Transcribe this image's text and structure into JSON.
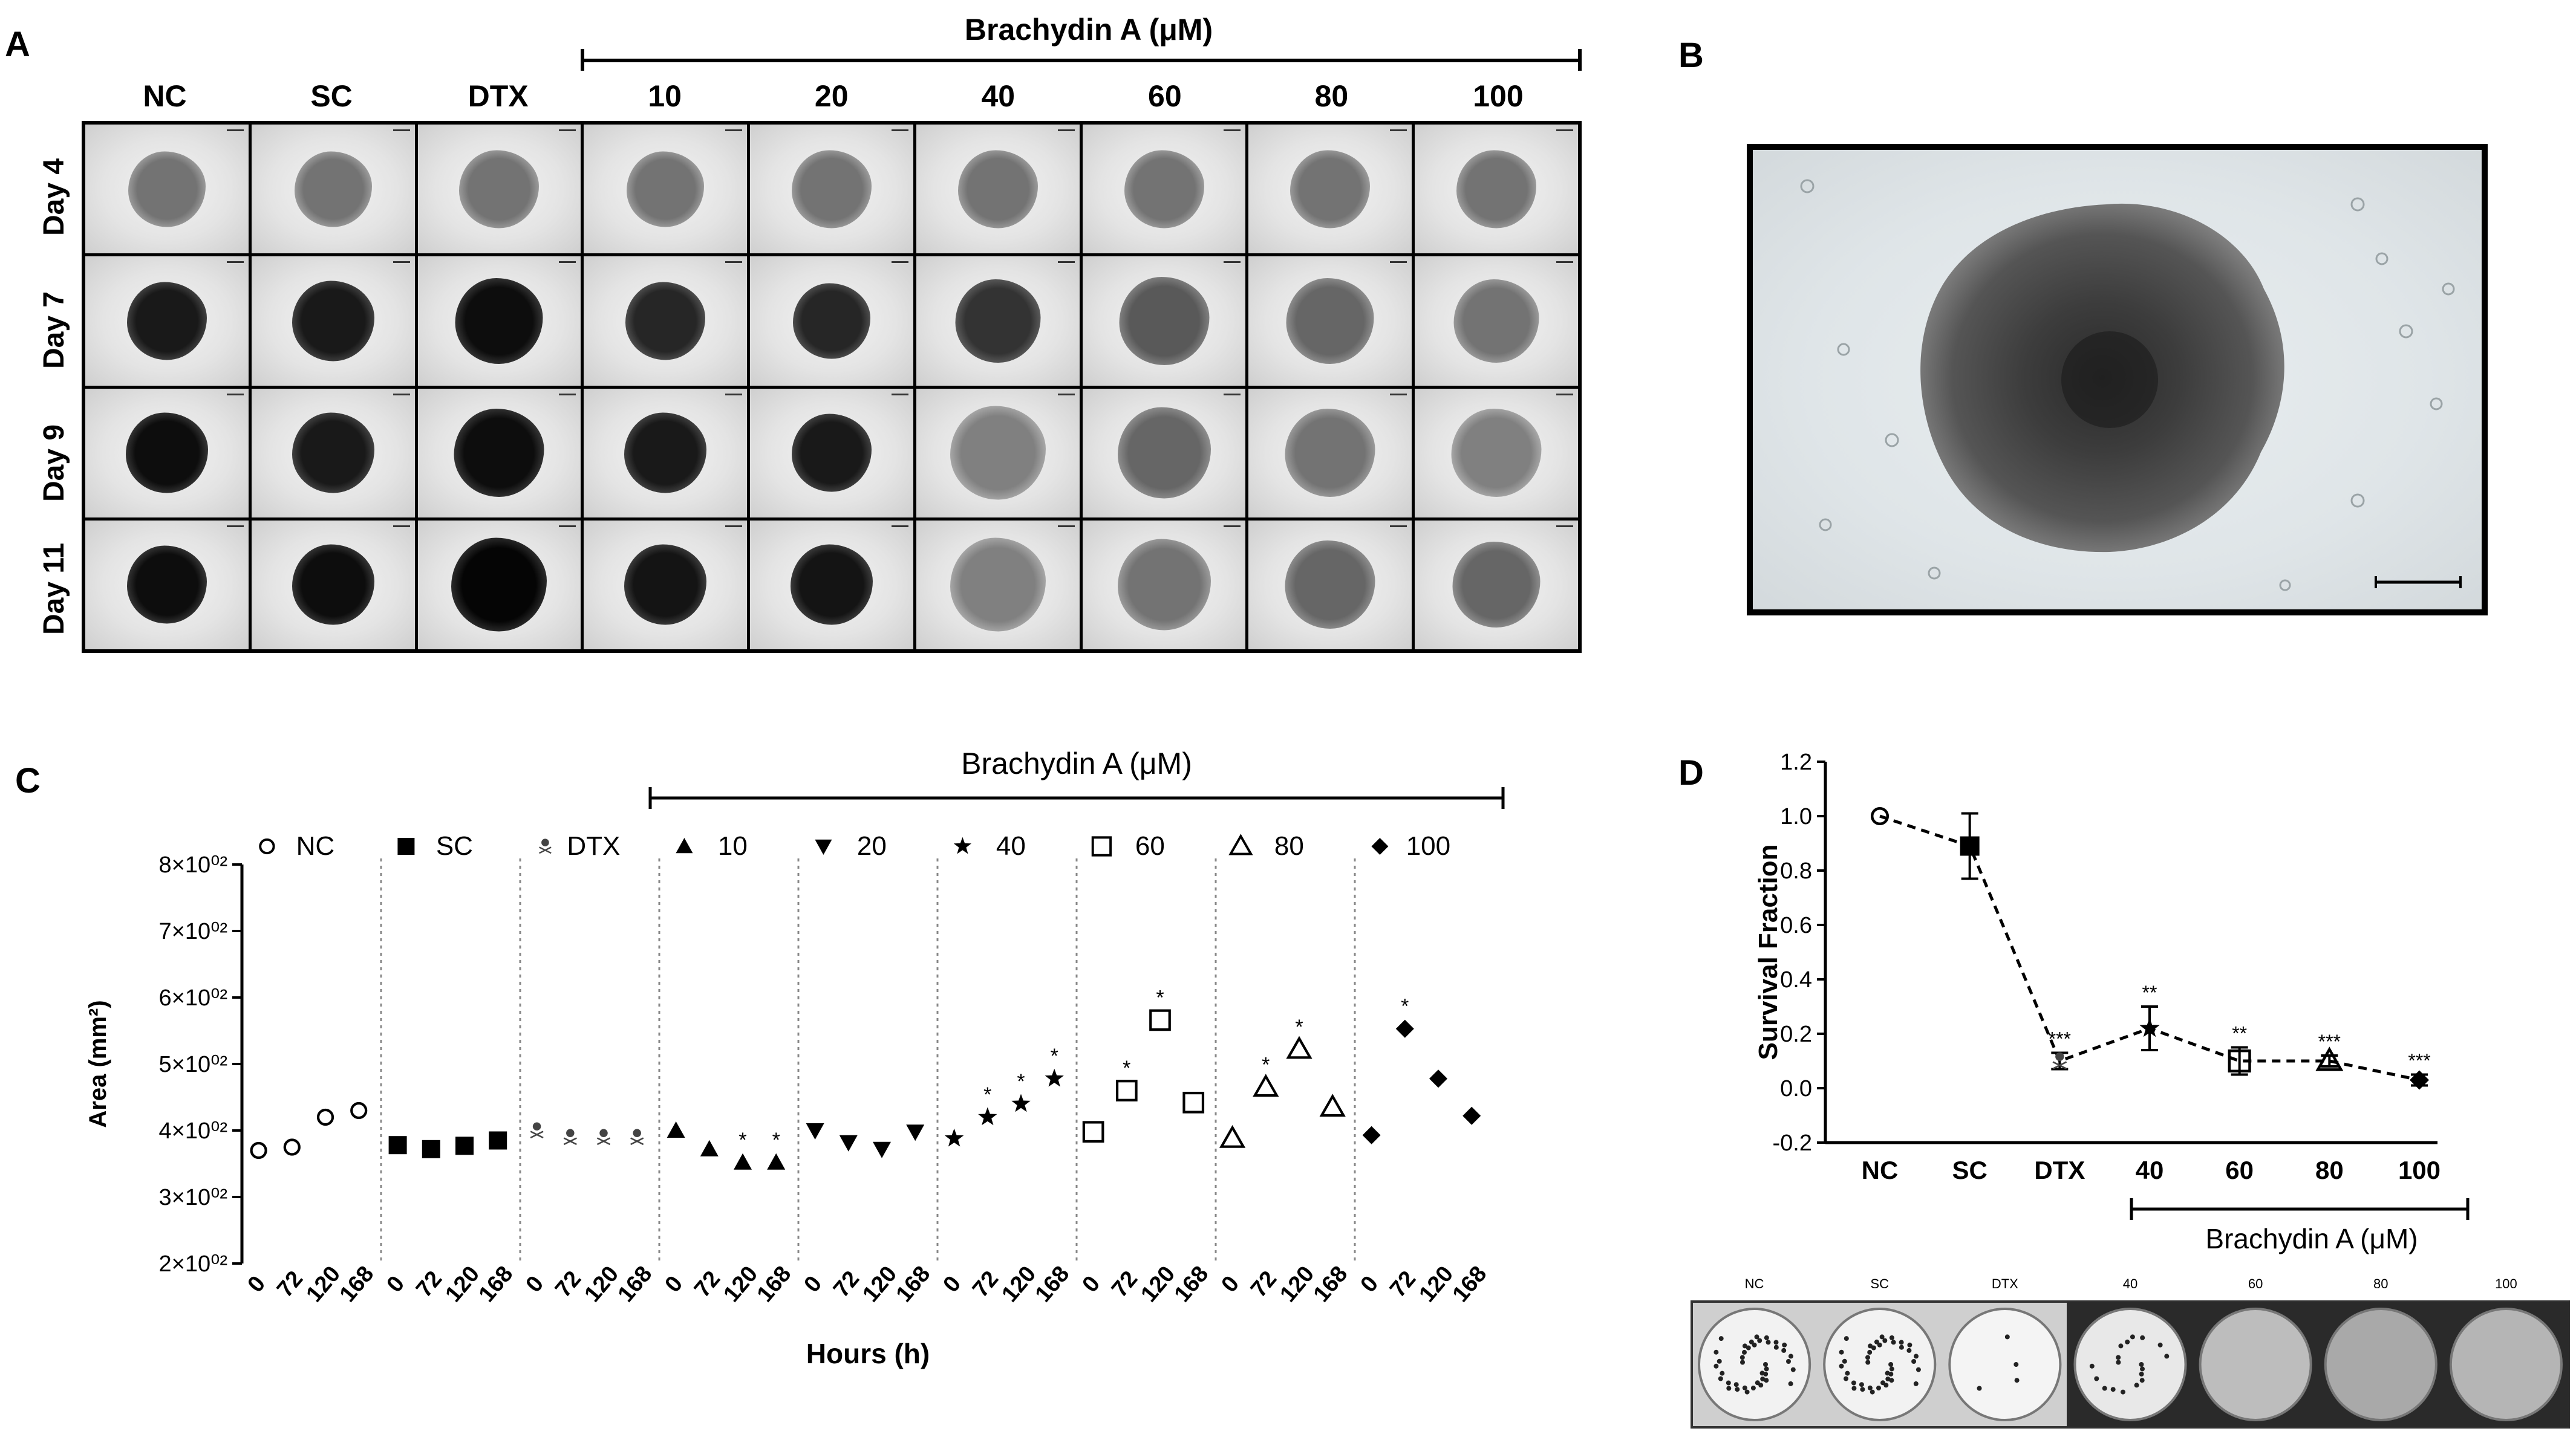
{
  "panels": {
    "a_label": "A",
    "b_label": "B",
    "c_label": "C",
    "d_label": "D"
  },
  "panel_a": {
    "treatment_title": "Brachydin A (μM)",
    "columns": [
      "NC",
      "SC",
      "DTX",
      "10",
      "20",
      "40",
      "60",
      "80",
      "100"
    ],
    "rows": [
      "Day 4",
      "Day 7",
      "Day 9",
      "Day 11"
    ]
  },
  "chart_data": [
    {
      "type": "scatter",
      "panel": "C",
      "xlabel": "Hours (h)",
      "ylabel": "Area (mm²)",
      "treatment_title": "Brachydin A (μM)",
      "y_tick_labels": [
        "2×10⁰²",
        "3×10⁰²",
        "4×10⁰²",
        "5×10⁰²",
        "6×10⁰²",
        "7×10⁰²",
        "8×10⁰²"
      ],
      "ylim": [
        200,
        800
      ],
      "x_tick_labels": [
        "0",
        "72",
        "120",
        "168"
      ],
      "legend_placement": "top",
      "groups": [
        {
          "name": "NC",
          "marker": "circle-open",
          "values": [
            370,
            375,
            420,
            430
          ],
          "stars": [
            "",
            "",
            "",
            ""
          ]
        },
        {
          "name": "SC",
          "marker": "square-filled",
          "values": [
            378,
            372,
            377,
            385
          ],
          "stars": [
            "",
            "",
            "",
            ""
          ]
        },
        {
          "name": "DTX",
          "marker": "skull",
          "values": [
            400,
            390,
            390,
            390
          ],
          "stars": [
            "",
            "",
            "",
            ""
          ]
        },
        {
          "name": "10",
          "marker": "triangle-up",
          "values": [
            400,
            372,
            352,
            352
          ],
          "stars": [
            "",
            "",
            "*",
            "*"
          ]
        },
        {
          "name": "20",
          "marker": "triangle-down",
          "values": [
            400,
            382,
            372,
            398
          ],
          "stars": [
            "",
            "",
            "",
            ""
          ]
        },
        {
          "name": "40",
          "marker": "star",
          "values": [
            388,
            420,
            440,
            478
          ],
          "stars": [
            "",
            "*",
            "*",
            "*"
          ]
        },
        {
          "name": "60",
          "marker": "square-open",
          "values": [
            398,
            460,
            566,
            442
          ],
          "stars": [
            "",
            "*",
            "*",
            ""
          ]
        },
        {
          "name": "80",
          "marker": "triangle-open",
          "values": [
            388,
            465,
            522,
            435
          ],
          "stars": [
            "",
            "*",
            "*",
            ""
          ]
        },
        {
          "name": "100",
          "marker": "diamond",
          "values": [
            393,
            553,
            478,
            422
          ],
          "stars": [
            "",
            "*",
            "",
            ""
          ]
        }
      ]
    },
    {
      "type": "line",
      "panel": "D",
      "ylabel": "Survival Fraction",
      "treatment_title": "Brachydin A (μM)",
      "categories": [
        "NC",
        "SC",
        "DTX",
        "40",
        "60",
        "80",
        "100"
      ],
      "values": [
        1.0,
        0.89,
        0.1,
        0.22,
        0.1,
        0.1,
        0.03
      ],
      "errors": [
        0,
        0.12,
        0.03,
        0.08,
        0.05,
        0.02,
        0.02
      ],
      "markers": [
        "circle-open",
        "square-filled",
        "skull",
        "star",
        "square-open",
        "triangle-open",
        "diamond"
      ],
      "significance": [
        "",
        "",
        "***",
        "**",
        "**",
        "***",
        "***"
      ],
      "ylim": [
        -0.2,
        1.2
      ],
      "y_ticks": [
        "-0.2",
        "0.0",
        "0.2",
        "0.4",
        "0.6",
        "0.8",
        "1.0",
        "1.2"
      ],
      "line_style": "dashed"
    }
  ],
  "panel_d_plate": {
    "wells": [
      "NC",
      "SC",
      "DTX",
      "40",
      "60",
      "80",
      "100"
    ]
  }
}
